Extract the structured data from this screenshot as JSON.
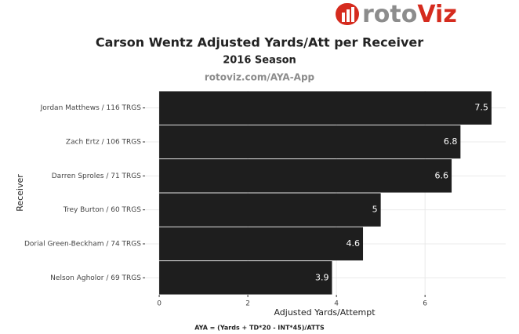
{
  "logo": {
    "prefix": "roto",
    "suffix": "Viz"
  },
  "chart_data": {
    "type": "barh",
    "title": "Carson Wentz Adjusted Yards/Att per Receiver",
    "subtitle": "2016 Season",
    "source": "rotoviz.com/AYA-App",
    "x_label": "Adjusted Yards/Attempt",
    "y_label": "Receiver",
    "caption": "AYA = (Yards + TD*20 - INT*45)/ATTS",
    "categories": [
      "Jordan Matthews / 116 TRGS",
      "Zach Ertz / 106 TRGS",
      "Darren Sproles / 71 TRGS",
      "Trey Burton / 60 TRGS",
      "Dorial Green-Beckham / 74 TRGS",
      "Nelson Agholor / 69 TRGS"
    ],
    "values": [
      7.5,
      6.8,
      6.6,
      5,
      4.6,
      3.9
    ],
    "color": "#1e1e1e",
    "xlim": [
      -0.32,
      7.82
    ],
    "xticks": [
      0,
      2,
      4,
      6
    ],
    "grid": true
  }
}
